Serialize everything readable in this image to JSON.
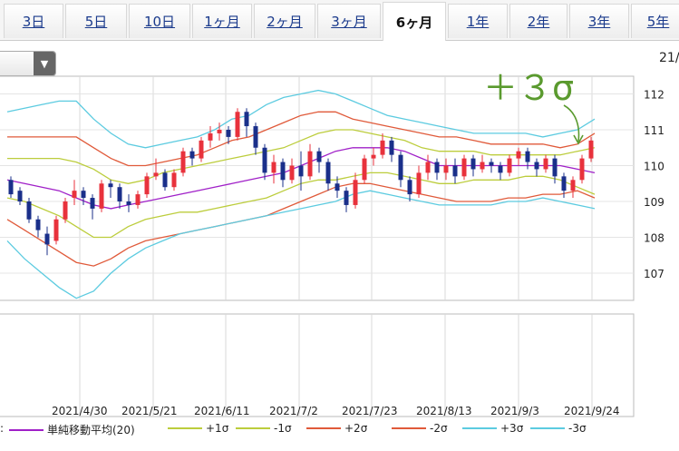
{
  "tabs": [
    "3日",
    "5日",
    "10日",
    "1ヶ月",
    "2ヶ月",
    "3ヶ月",
    "6ヶ月",
    "1年",
    "2年",
    "3年",
    "5年"
  ],
  "active_tab": "6ヶ月",
  "top_right_label": "21/",
  "legend_prefix": ":",
  "annotation": "＋３σ",
  "colors": {
    "up": "#e8323c",
    "down": "#1a2f8a",
    "sma": "#a020c8",
    "p1": "#bccd3c",
    "m1": "#bccd3c",
    "p2": "#e05a3a",
    "m2": "#e05a3a",
    "p3": "#5ccbe0",
    "m3": "#5ccbe0",
    "annotation": "#5a9a2e"
  },
  "chart_data": {
    "type": "line",
    "title": "",
    "y_ticks": [
      "112",
      "111",
      "110",
      "109",
      "108",
      "107"
    ],
    "y_tick_values": [
      112,
      111,
      110,
      109,
      108,
      107
    ],
    "x_tick_labels": [
      "2021/4/30",
      "2021/5/21",
      "2021/6/11",
      "2021/7/2",
      "2021/7/23",
      "2021/8/13",
      "2021/9/3",
      "2021/9/24"
    ],
    "series": [
      {
        "name": "単純移動平均(20)",
        "key": "sma",
        "values": [
          109.6,
          109.5,
          109.4,
          109.3,
          109.1,
          108.9,
          108.8,
          108.9,
          109.0,
          109.1,
          109.2,
          109.3,
          109.4,
          109.5,
          109.6,
          109.7,
          109.8,
          110.0,
          110.2,
          110.4,
          110.5,
          110.5,
          110.5,
          110.4,
          110.2,
          110.0,
          110.0,
          110.0,
          110.0,
          110.0,
          110.0,
          110.0,
          110.0,
          109.9,
          109.8
        ]
      },
      {
        "name": "+1σ",
        "key": "p1",
        "values": [
          110.2,
          110.2,
          110.2,
          110.2,
          110.1,
          109.9,
          109.6,
          109.5,
          109.6,
          109.8,
          109.9,
          110.0,
          110.1,
          110.2,
          110.3,
          110.4,
          110.5,
          110.7,
          110.9,
          111.0,
          111.0,
          110.9,
          110.8,
          110.7,
          110.5,
          110.4,
          110.4,
          110.4,
          110.3,
          110.3,
          110.3,
          110.3,
          110.3,
          110.4,
          110.5
        ]
      },
      {
        "name": "-1σ",
        "key": "m1",
        "values": [
          109.1,
          109.0,
          108.8,
          108.6,
          108.3,
          108.0,
          108.0,
          108.3,
          108.5,
          108.6,
          108.7,
          108.7,
          108.8,
          108.9,
          109.0,
          109.1,
          109.3,
          109.5,
          109.6,
          109.6,
          109.7,
          109.8,
          109.8,
          109.7,
          109.6,
          109.5,
          109.5,
          109.6,
          109.6,
          109.6,
          109.7,
          109.7,
          109.6,
          109.4,
          109.2
        ]
      },
      {
        "name": "+2σ",
        "key": "p2",
        "values": [
          110.8,
          110.8,
          110.8,
          110.8,
          110.8,
          110.5,
          110.2,
          110.0,
          110.0,
          110.1,
          110.2,
          110.3,
          110.5,
          110.7,
          110.8,
          111.0,
          111.2,
          111.4,
          111.5,
          111.5,
          111.3,
          111.2,
          111.1,
          111.0,
          110.9,
          110.8,
          110.8,
          110.7,
          110.6,
          110.6,
          110.6,
          110.6,
          110.5,
          110.6,
          110.9
        ]
      },
      {
        "name": "-2σ",
        "key": "m2",
        "values": [
          108.5,
          108.2,
          107.9,
          107.6,
          107.3,
          107.2,
          107.4,
          107.7,
          107.9,
          108.0,
          108.1,
          108.2,
          108.3,
          108.4,
          108.5,
          108.6,
          108.8,
          109.0,
          109.2,
          109.4,
          109.5,
          109.5,
          109.4,
          109.3,
          109.2,
          109.1,
          109.0,
          109.0,
          109.0,
          109.1,
          109.1,
          109.2,
          109.2,
          109.3,
          109.1
        ]
      },
      {
        "name": "+3σ",
        "key": "p3",
        "values": [
          111.5,
          111.6,
          111.7,
          111.8,
          111.8,
          111.3,
          110.9,
          110.6,
          110.5,
          110.6,
          110.7,
          110.8,
          111.0,
          111.3,
          111.4,
          111.7,
          111.9,
          112.0,
          112.1,
          112.0,
          111.8,
          111.6,
          111.4,
          111.3,
          111.2,
          111.1,
          111.0,
          110.9,
          110.9,
          110.9,
          110.9,
          110.8,
          110.9,
          111.0,
          111.3
        ]
      },
      {
        "name": "-3σ",
        "key": "m3",
        "values": [
          107.9,
          107.4,
          107.0,
          106.6,
          106.3,
          106.5,
          107.0,
          107.4,
          107.7,
          107.9,
          108.1,
          108.2,
          108.3,
          108.4,
          108.5,
          108.6,
          108.7,
          108.8,
          108.9,
          109.0,
          109.2,
          109.3,
          109.2,
          109.1,
          109.0,
          108.9,
          108.9,
          108.9,
          108.9,
          109.0,
          109.0,
          109.1,
          109.0,
          108.9,
          108.8
        ]
      }
    ],
    "candles": [
      [
        109.6,
        109.2,
        109.7,
        109.1
      ],
      [
        109.3,
        109.0,
        109.4,
        108.9
      ],
      [
        109.0,
        108.5,
        109.1,
        108.4
      ],
      [
        108.5,
        108.2,
        108.6,
        108.0
      ],
      [
        108.1,
        107.8,
        108.3,
        107.5
      ],
      [
        107.9,
        108.5,
        108.6,
        107.8
      ],
      [
        108.5,
        109.0,
        109.1,
        108.4
      ],
      [
        109.1,
        109.3,
        109.6,
        108.9
      ],
      [
        109.3,
        109.1,
        109.4,
        108.9
      ],
      [
        109.1,
        108.8,
        109.2,
        108.5
      ],
      [
        108.8,
        109.5,
        109.6,
        108.7
      ],
      [
        109.5,
        109.4,
        109.6,
        109.1
      ],
      [
        109.4,
        109.0,
        109.5,
        108.8
      ],
      [
        109.0,
        108.9,
        109.2,
        108.7
      ],
      [
        108.9,
        109.2,
        109.3,
        108.8
      ],
      [
        109.2,
        109.7,
        109.8,
        109.1
      ],
      [
        109.7,
        109.8,
        110.2,
        109.6
      ],
      [
        109.8,
        109.4,
        109.9,
        109.3
      ],
      [
        109.4,
        109.8,
        109.9,
        109.3
      ],
      [
        109.8,
        110.4,
        110.5,
        109.7
      ],
      [
        110.4,
        110.2,
        110.5,
        110.0
      ],
      [
        110.2,
        110.7,
        110.8,
        110.1
      ],
      [
        110.7,
        110.9,
        111.1,
        110.5
      ],
      [
        110.9,
        111.0,
        111.2,
        110.7
      ],
      [
        111.0,
        110.8,
        111.1,
        110.6
      ],
      [
        110.8,
        111.5,
        111.6,
        110.7
      ],
      [
        111.5,
        111.1,
        111.6,
        110.8
      ],
      [
        111.1,
        110.5,
        111.2,
        110.3
      ],
      [
        110.5,
        109.8,
        110.6,
        109.6
      ],
      [
        109.8,
        110.1,
        110.3,
        109.5
      ],
      [
        110.1,
        109.6,
        110.2,
        109.4
      ],
      [
        109.6,
        110.0,
        110.2,
        109.5
      ],
      [
        110.0,
        109.7,
        110.4,
        109.3
      ],
      [
        109.7,
        110.4,
        110.6,
        109.6
      ],
      [
        110.4,
        110.1,
        110.5,
        109.8
      ],
      [
        110.1,
        109.5,
        110.2,
        109.3
      ],
      [
        109.5,
        109.3,
        109.7,
        109.1
      ],
      [
        109.3,
        108.9,
        109.4,
        108.7
      ],
      [
        108.9,
        109.6,
        109.8,
        108.8
      ],
      [
        109.6,
        110.2,
        110.3,
        109.5
      ],
      [
        110.2,
        110.3,
        110.5,
        110.0
      ],
      [
        110.3,
        110.7,
        110.9,
        110.2
      ],
      [
        110.7,
        110.3,
        110.8,
        110.1
      ],
      [
        110.3,
        109.6,
        110.4,
        109.4
      ],
      [
        109.6,
        109.2,
        109.7,
        109.0
      ],
      [
        109.2,
        109.8,
        110.0,
        109.1
      ],
      [
        109.8,
        110.1,
        110.3,
        109.6
      ],
      [
        110.1,
        109.8,
        110.2,
        109.6
      ],
      [
        109.8,
        110.0,
        110.2,
        109.6
      ],
      [
        110.0,
        109.7,
        110.2,
        109.5
      ],
      [
        109.7,
        110.2,
        110.3,
        109.6
      ],
      [
        110.2,
        109.9,
        110.3,
        109.7
      ],
      [
        109.9,
        110.1,
        110.3,
        109.8
      ],
      [
        110.1,
        110.0,
        110.2,
        109.8
      ],
      [
        110.0,
        109.8,
        110.1,
        109.6
      ],
      [
        109.8,
        110.2,
        110.3,
        109.7
      ],
      [
        110.2,
        110.4,
        110.5,
        110.0
      ],
      [
        110.4,
        110.1,
        110.5,
        109.9
      ],
      [
        110.1,
        109.9,
        110.2,
        109.7
      ],
      [
        109.9,
        110.2,
        110.3,
        109.8
      ],
      [
        110.2,
        109.7,
        110.3,
        109.5
      ],
      [
        109.7,
        109.3,
        109.8,
        109.1
      ],
      [
        109.3,
        109.6,
        109.7,
        109.1
      ],
      [
        109.6,
        110.2,
        110.3,
        109.5
      ],
      [
        110.2,
        110.7,
        110.8,
        110.1
      ]
    ]
  }
}
